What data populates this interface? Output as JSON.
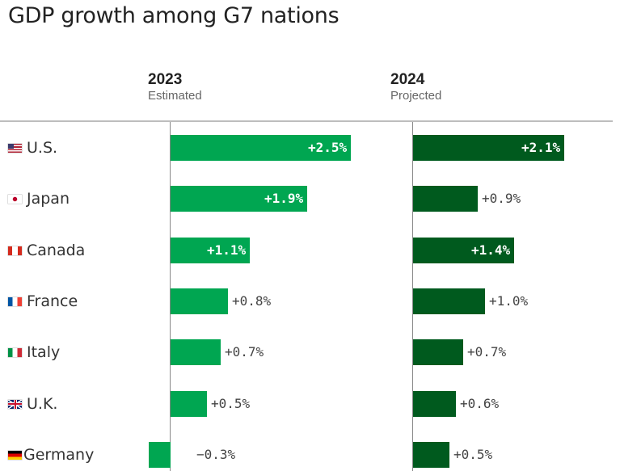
{
  "title": "GDP growth among G7 nations",
  "columns": [
    {
      "year": "2023",
      "subtitle": "Estimated"
    },
    {
      "year": "2024",
      "subtitle": "Projected"
    }
  ],
  "colors": {
    "estimated": "#00a651",
    "projected": "#005a1e"
  },
  "flag_icons": [
    "us-flag-icon",
    "japan-flag-icon",
    "canada-flag-icon",
    "france-flag-icon",
    "italy-flag-icon",
    "uk-flag-icon",
    "germany-flag-icon"
  ],
  "chart_data": {
    "type": "bar",
    "categories": [
      "U.S.",
      "Japan",
      "Canada",
      "France",
      "Italy",
      "U.K.",
      "Germany"
    ],
    "series": [
      {
        "values": [
          2.5,
          1.9,
          1.1,
          0.8,
          0.7,
          0.5,
          -0.3
        ],
        "labels": [
          "+2.5%",
          "+1.9%",
          "+1.1%",
          "+0.8%",
          "+0.7%",
          "+0.5%",
          "−0.3%"
        ]
      },
      {
        "values": [
          2.1,
          0.9,
          1.4,
          1.0,
          0.7,
          0.6,
          0.5
        ],
        "labels": [
          "+2.1%",
          "+0.9%",
          "+1.4%",
          "+1.0%",
          "+0.7%",
          "+0.6%",
          "+0.5%"
        ]
      }
    ]
  }
}
